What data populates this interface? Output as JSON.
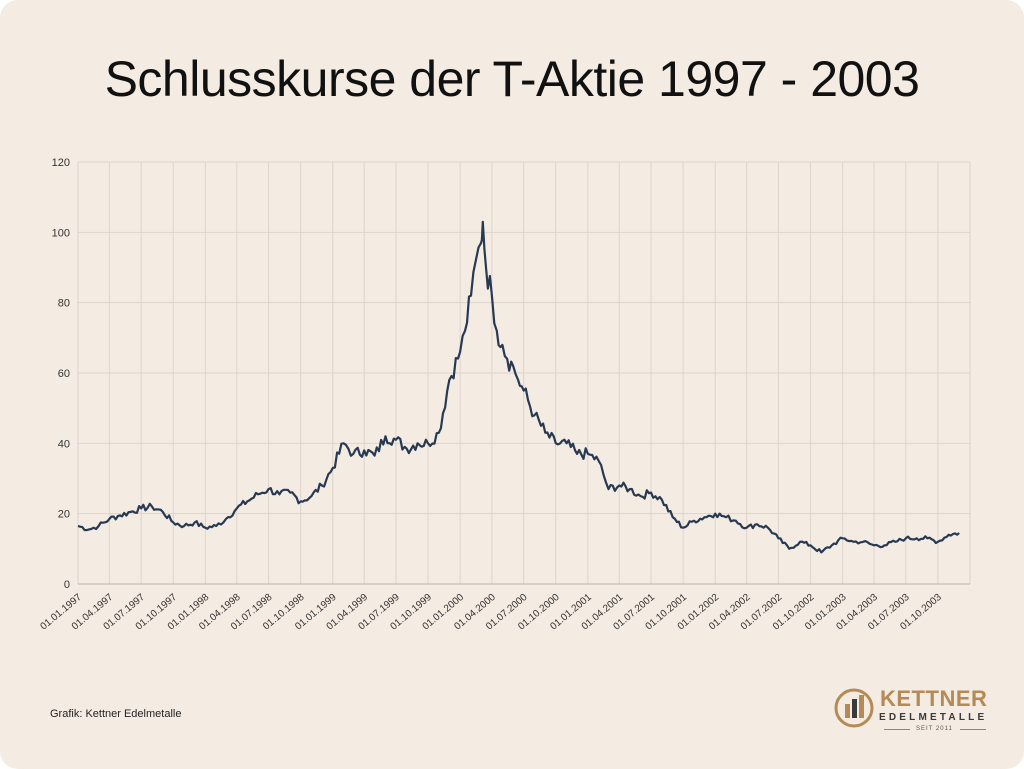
{
  "title": "Schlusskurse der T-Aktie 1997 - 2003",
  "source": "Grafik: Kettner Edelmetalle",
  "logo": {
    "name": "KETTNER",
    "subtitle": "EDELMETALLE",
    "since": "SEIT 2011",
    "color_gold": "#b58a55",
    "color_dark": "#3a3a3a",
    "icon": "kettner-logo-icon"
  },
  "colors": {
    "background": "#f4ece3",
    "line": "#273a52",
    "grid": "#ddd5cd"
  },
  "chart_data": {
    "type": "line",
    "title": "Schlusskurse der T-Aktie 1997 - 2003",
    "xlabel": "",
    "ylabel": "",
    "ylim": [
      0,
      120
    ],
    "yticks": [
      "0",
      "20",
      "40",
      "60",
      "80",
      "100",
      "120"
    ],
    "xticks": [
      "01.01.1997",
      "01.04.1997",
      "01.07.1997",
      "01.10.1997",
      "01.01.1998",
      "01.04.1998",
      "01.07.1998",
      "01.10.1998",
      "01.01.1999",
      "01.04.1999",
      "01.07.1999",
      "01.10.1999",
      "01.01.2000",
      "01.04.2000",
      "01.07.2000",
      "01.10.2000",
      "01.01.2001",
      "01.04.2001",
      "01.07.2001",
      "01.10.2001",
      "01.01.2002",
      "01.04.2002",
      "01.07.2002",
      "01.10.2002",
      "01.01.2003",
      "01.04.2003",
      "01.07.2003",
      "01.10.2003"
    ],
    "grid": true,
    "legend": "none",
    "series": [
      {
        "x": [
          "01.01.1997",
          "01.02.1997",
          "01.03.1997",
          "01.04.1997",
          "01.05.1997",
          "01.06.1997",
          "01.07.1997",
          "01.08.1997",
          "01.09.1997",
          "01.10.1997",
          "01.11.1997",
          "01.12.1997",
          "01.01.1998",
          "01.02.1998",
          "01.03.1998",
          "01.04.1998",
          "01.05.1998",
          "01.06.1998",
          "01.07.1998",
          "01.08.1998",
          "01.09.1998",
          "01.10.1998",
          "01.11.1998",
          "01.12.1998",
          "01.01.1999",
          "01.02.1999",
          "01.03.1999",
          "01.04.1999",
          "01.05.1999",
          "01.06.1999",
          "01.07.1999",
          "01.08.1999",
          "01.09.1999",
          "01.10.1999",
          "01.11.1999",
          "01.12.1999",
          "01.01.2000",
          "15.01.2000",
          "01.02.2000",
          "15.02.2000",
          "01.03.2000",
          "06.03.2000",
          "15.03.2000",
          "01.04.2000",
          "15.04.2000",
          "01.05.2000",
          "15.05.2000",
          "01.06.2000",
          "15.06.2000",
          "01.07.2000",
          "01.08.2000",
          "01.09.2000",
          "01.10.2000",
          "01.11.2000",
          "01.12.2000",
          "01.01.2001",
          "01.02.2001",
          "01.03.2001",
          "01.04.2001",
          "01.05.2001",
          "01.06.2001",
          "01.07.2001",
          "01.08.2001",
          "01.09.2001",
          "01.10.2001",
          "01.11.2001",
          "01.12.2001",
          "01.01.2002",
          "01.02.2002",
          "01.03.2002",
          "01.04.2002",
          "01.05.2002",
          "01.06.2002",
          "01.07.2002",
          "01.08.2002",
          "01.09.2002",
          "01.10.2002",
          "01.11.2002",
          "01.12.2002",
          "01.01.2003",
          "01.02.2003",
          "01.03.2003",
          "01.04.2003",
          "01.05.2003",
          "01.06.2003",
          "01.07.2003",
          "01.08.2003",
          "01.09.2003",
          "01.10.2003",
          "01.11.2003",
          "01.12.2003"
        ],
        "values": [
          16.5,
          15.5,
          16.5,
          18.5,
          19.5,
          20.5,
          21.5,
          22,
          20.5,
          17.5,
          16.5,
          17.5,
          16,
          16.5,
          18.5,
          21.5,
          23.5,
          25.5,
          27,
          25.5,
          26,
          23.5,
          25,
          28,
          33,
          40,
          37,
          38,
          36.5,
          42,
          41,
          38.5,
          40,
          40,
          43,
          58,
          66,
          72,
          82,
          92,
          97,
          103,
          90,
          82,
          72,
          68,
          64,
          62,
          58,
          55,
          48,
          43,
          40,
          40,
          37,
          37,
          35,
          27,
          28,
          27,
          25,
          26,
          24,
          19,
          16,
          18,
          19,
          20,
          19,
          18,
          16,
          17,
          16,
          13,
          10,
          12,
          11,
          9,
          11,
          13,
          12,
          12,
          11,
          11,
          12,
          13,
          13,
          13,
          12,
          14,
          14.5
        ]
      }
    ]
  }
}
